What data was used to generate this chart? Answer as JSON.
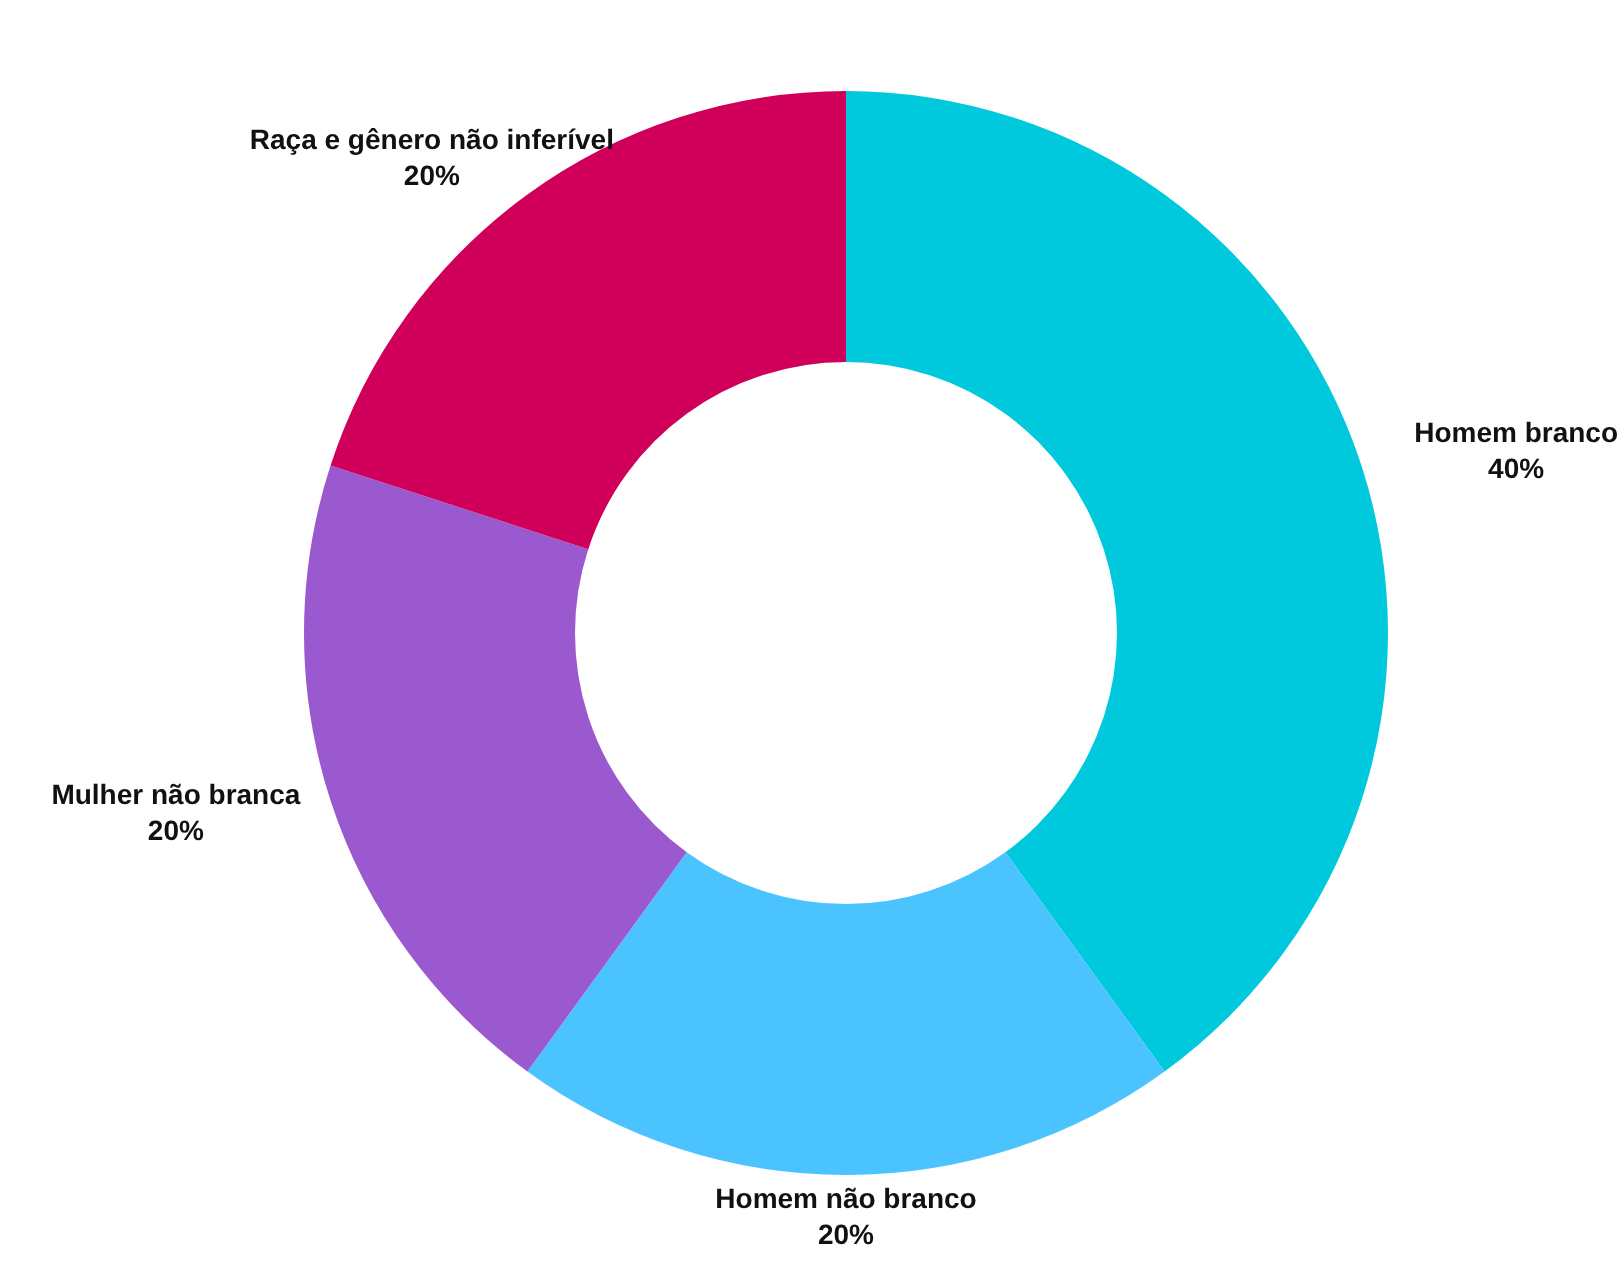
{
  "chart_data": {
    "type": "donut",
    "categories": [
      "Homem branco",
      "Homem não branco",
      "Mulher não branca",
      "Raça e gênero não inferível"
    ],
    "values": [
      40,
      20,
      20,
      20
    ],
    "colors": [
      "#00c9dd",
      "#4bc3fe",
      "#9b59cf",
      "#d0005a"
    ],
    "value_labels": [
      "40%",
      "20%",
      "20%",
      "20%"
    ],
    "legend": false
  }
}
